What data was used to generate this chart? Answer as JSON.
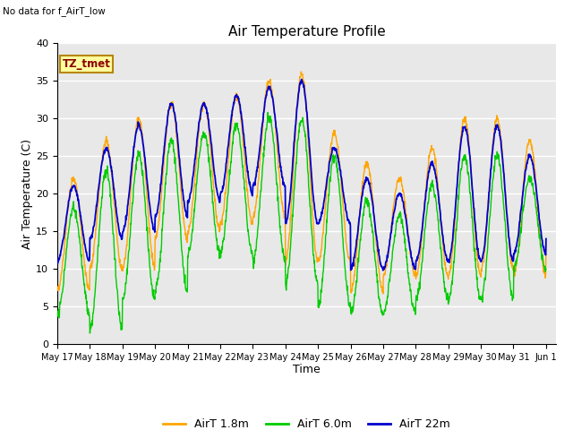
{
  "title": "Air Temperature Profile",
  "top_left_text": "No data for f_AirT_low",
  "annotation_text": "TZ_tmet",
  "xlabel": "Time",
  "ylabel": "Air Temperature (C)",
  "ylim": [
    0,
    40
  ],
  "background_color": "#e8e8e8",
  "x_tick_labels": [
    "May 17",
    "May 18",
    "May 19",
    "May 20",
    "May 21",
    "May 22",
    "May 23",
    "May 24",
    "May 25",
    "May 26",
    "May 27",
    "May 28",
    "May 29",
    "May 30",
    "May 31",
    "Jun 1"
  ],
  "color_18m": "#FFA500",
  "color_60m": "#00CC00",
  "color_22m": "#0000CC",
  "legend_labels": [
    "AirT 1.8m",
    "AirT 6.0m",
    "AirT 22m"
  ],
  "day_peaks_18": [
    22,
    27,
    30,
    32,
    32,
    33,
    35,
    36,
    28,
    24,
    22,
    26,
    30,
    30,
    27,
    25
  ],
  "day_mins_18": [
    7,
    10,
    10,
    14,
    15,
    16,
    17,
    11,
    11,
    7,
    9,
    9,
    9,
    10,
    9,
    13
  ],
  "day_peaks_60": [
    18,
    23,
    25,
    27,
    28,
    29,
    30,
    30,
    25,
    19,
    17,
    21,
    25,
    25,
    22,
    22
  ],
  "day_mins_60": [
    4,
    2,
    6,
    7,
    12,
    12,
    11,
    8,
    5,
    4,
    4,
    6,
    6,
    6,
    10,
    10
  ],
  "day_peaks_22": [
    21,
    26,
    29,
    32,
    32,
    33,
    34,
    35,
    26,
    22,
    20,
    24,
    29,
    29,
    25,
    24
  ],
  "day_mins_22": [
    11,
    14,
    15,
    17,
    19,
    20,
    21,
    16,
    16,
    10,
    10,
    11,
    11,
    11,
    12,
    14
  ]
}
